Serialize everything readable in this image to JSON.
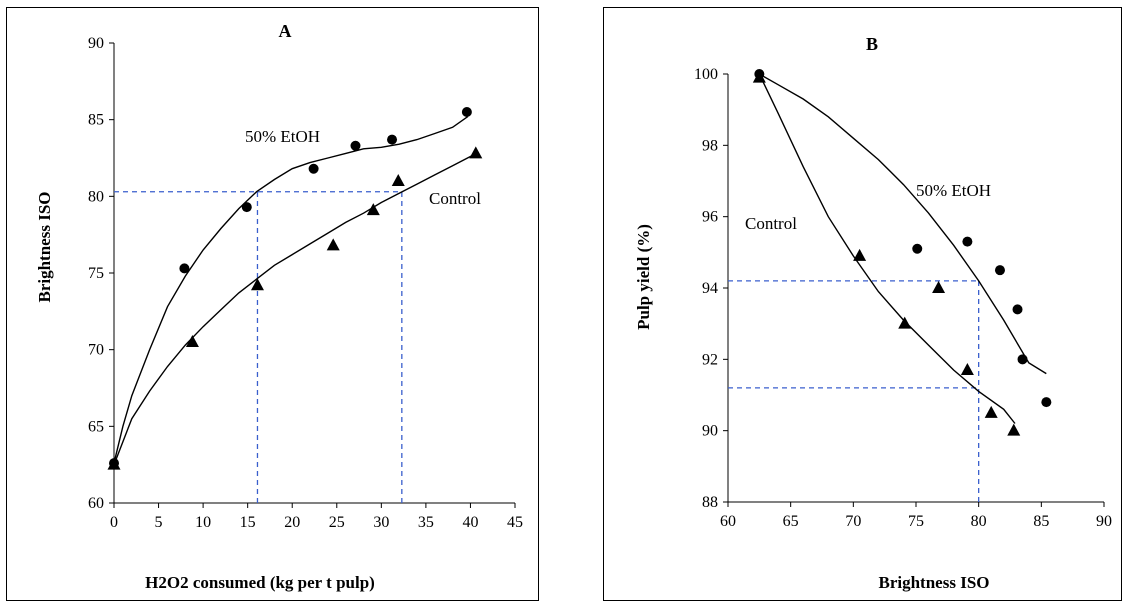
{
  "chart_data": [
    {
      "type": "scatter",
      "title": "A",
      "xlabel": "H2O2 consumed (kg per t pulp)",
      "ylabel": "Brightness ISO",
      "xlim": [
        0,
        45
      ],
      "ylim": [
        60,
        90
      ],
      "xticks": [
        0,
        5,
        10,
        15,
        20,
        25,
        30,
        35,
        40,
        45
      ],
      "yticks": [
        60,
        65,
        70,
        75,
        80,
        85,
        90
      ],
      "grid": false,
      "series": [
        {
          "name": "50% EtOH",
          "marker": "circle",
          "points": [
            [
              0,
              62.6
            ],
            [
              7.9,
              75.3
            ],
            [
              14.9,
              79.3
            ],
            [
              22.4,
              81.8
            ],
            [
              27.1,
              83.3
            ],
            [
              31.2,
              83.7
            ],
            [
              39.6,
              85.5
            ]
          ],
          "fit": [
            [
              0,
              62.6
            ],
            [
              1,
              65
            ],
            [
              2,
              67
            ],
            [
              4,
              70
            ],
            [
              6,
              72.8
            ],
            [
              8,
              74.8
            ],
            [
              10,
              76.5
            ],
            [
              12,
              77.9
            ],
            [
              14,
              79.2
            ],
            [
              16,
              80.3
            ],
            [
              18,
              81.1
            ],
            [
              20,
              81.8
            ],
            [
              22,
              82.2
            ],
            [
              24,
              82.5
            ],
            [
              26,
              82.8
            ],
            [
              28,
              83.1
            ],
            [
              30,
              83.2
            ],
            [
              32,
              83.4
            ],
            [
              34,
              83.7
            ],
            [
              36,
              84.1
            ],
            [
              38,
              84.5
            ],
            [
              39.7,
              85.2
            ]
          ]
        },
        {
          "name": "Control",
          "marker": "triangle",
          "points": [
            [
              0,
              62.5
            ],
            [
              8.8,
              70.5
            ],
            [
              16.1,
              74.2
            ],
            [
              24.6,
              76.8
            ],
            [
              29.1,
              79.1
            ],
            [
              31.9,
              81
            ],
            [
              40.6,
              82.8
            ]
          ],
          "fit": [
            [
              0,
              62.5
            ],
            [
              2,
              65.5
            ],
            [
              4,
              67.3
            ],
            [
              6,
              68.9
            ],
            [
              8,
              70.3
            ],
            [
              10,
              71.5
            ],
            [
              12,
              72.6
            ],
            [
              14,
              73.7
            ],
            [
              16,
              74.6
            ],
            [
              18,
              75.5
            ],
            [
              20,
              76.2
            ],
            [
              22,
              76.9
            ],
            [
              24,
              77.6
            ],
            [
              26,
              78.3
            ],
            [
              28,
              78.9
            ],
            [
              30,
              79.6
            ],
            [
              32,
              80.2
            ],
            [
              34,
              80.8
            ],
            [
              36,
              81.4
            ],
            [
              38,
              82
            ],
            [
              40,
              82.6
            ],
            [
              40.6,
              82.8
            ]
          ]
        }
      ],
      "reference_lines": [
        {
          "from": [
            0,
            80.3
          ],
          "to": [
            32.3,
            80.3
          ]
        },
        {
          "from": [
            16.1,
            60
          ],
          "to": [
            16.1,
            80.3
          ]
        },
        {
          "from": [
            32.3,
            60
          ],
          "to": [
            32.3,
            80.3
          ]
        }
      ]
    },
    {
      "type": "scatter",
      "title": "B",
      "xlabel": "Brightness ISO",
      "ylabel": "Pulp yield (%)",
      "xlim": [
        60,
        90
      ],
      "ylim": [
        88,
        100
      ],
      "xticks": [
        60,
        65,
        70,
        75,
        80,
        85,
        90
      ],
      "yticks": [
        88,
        90,
        92,
        94,
        96,
        98,
        100
      ],
      "grid": false,
      "series": [
        {
          "name": "50% EtOH",
          "marker": "circle",
          "points": [
            [
              62.5,
              100
            ],
            [
              75.1,
              95.1
            ],
            [
              79.1,
              95.3
            ],
            [
              81.7,
              94.5
            ],
            [
              83.1,
              93.4
            ],
            [
              83.5,
              92
            ],
            [
              85.4,
              90.8
            ]
          ],
          "fit": [
            [
              62.5,
              100
            ],
            [
              64,
              99.7
            ],
            [
              66,
              99.3
            ],
            [
              68,
              98.8
            ],
            [
              70,
              98.2
            ],
            [
              72,
              97.6
            ],
            [
              74,
              96.9
            ],
            [
              76,
              96.1
            ],
            [
              78,
              95.2
            ],
            [
              80,
              94.2
            ],
            [
              82,
              93.1
            ],
            [
              84,
              91.9
            ],
            [
              85.4,
              91.6
            ]
          ]
        },
        {
          "name": "Control",
          "marker": "triangle",
          "points": [
            [
              62.5,
              99.9
            ],
            [
              70.5,
              94.9
            ],
            [
              74.1,
              93
            ],
            [
              76.8,
              94
            ],
            [
              79.1,
              91.7
            ],
            [
              81,
              90.5
            ],
            [
              82.8,
              90
            ]
          ],
          "fit": [
            [
              62.5,
              100
            ],
            [
              64,
              98.9
            ],
            [
              66,
              97.4
            ],
            [
              68,
              96
            ],
            [
              70,
              94.9
            ],
            [
              72,
              93.9
            ],
            [
              74,
              93.1
            ],
            [
              76,
              92.4
            ],
            [
              78,
              91.7
            ],
            [
              80,
              91.1
            ],
            [
              82,
              90.6
            ],
            [
              82.9,
              90.2
            ]
          ]
        }
      ],
      "reference_lines": [
        {
          "from": [
            60,
            94.2
          ],
          "to": [
            80,
            94.2
          ]
        },
        {
          "from": [
            60,
            91.2
          ],
          "to": [
            80,
            91.2
          ]
        },
        {
          "from": [
            80,
            88
          ],
          "to": [
            80,
            94.2
          ]
        }
      ]
    }
  ],
  "labels": {
    "a": {
      "title": "A",
      "ylabel": "Brightness ISO",
      "xlabel": "H2O2 consumed (kg per t pulp)",
      "etoh": "50% EtOH",
      "control": "Control"
    },
    "b": {
      "title": "B",
      "ylabel": "Pulp yield (%)",
      "xlabel": "Brightness ISO",
      "etoh": "50% EtOH",
      "control": "Control"
    }
  },
  "colors": {
    "reference_line": "#3a5fcd",
    "line": "#000000"
  }
}
